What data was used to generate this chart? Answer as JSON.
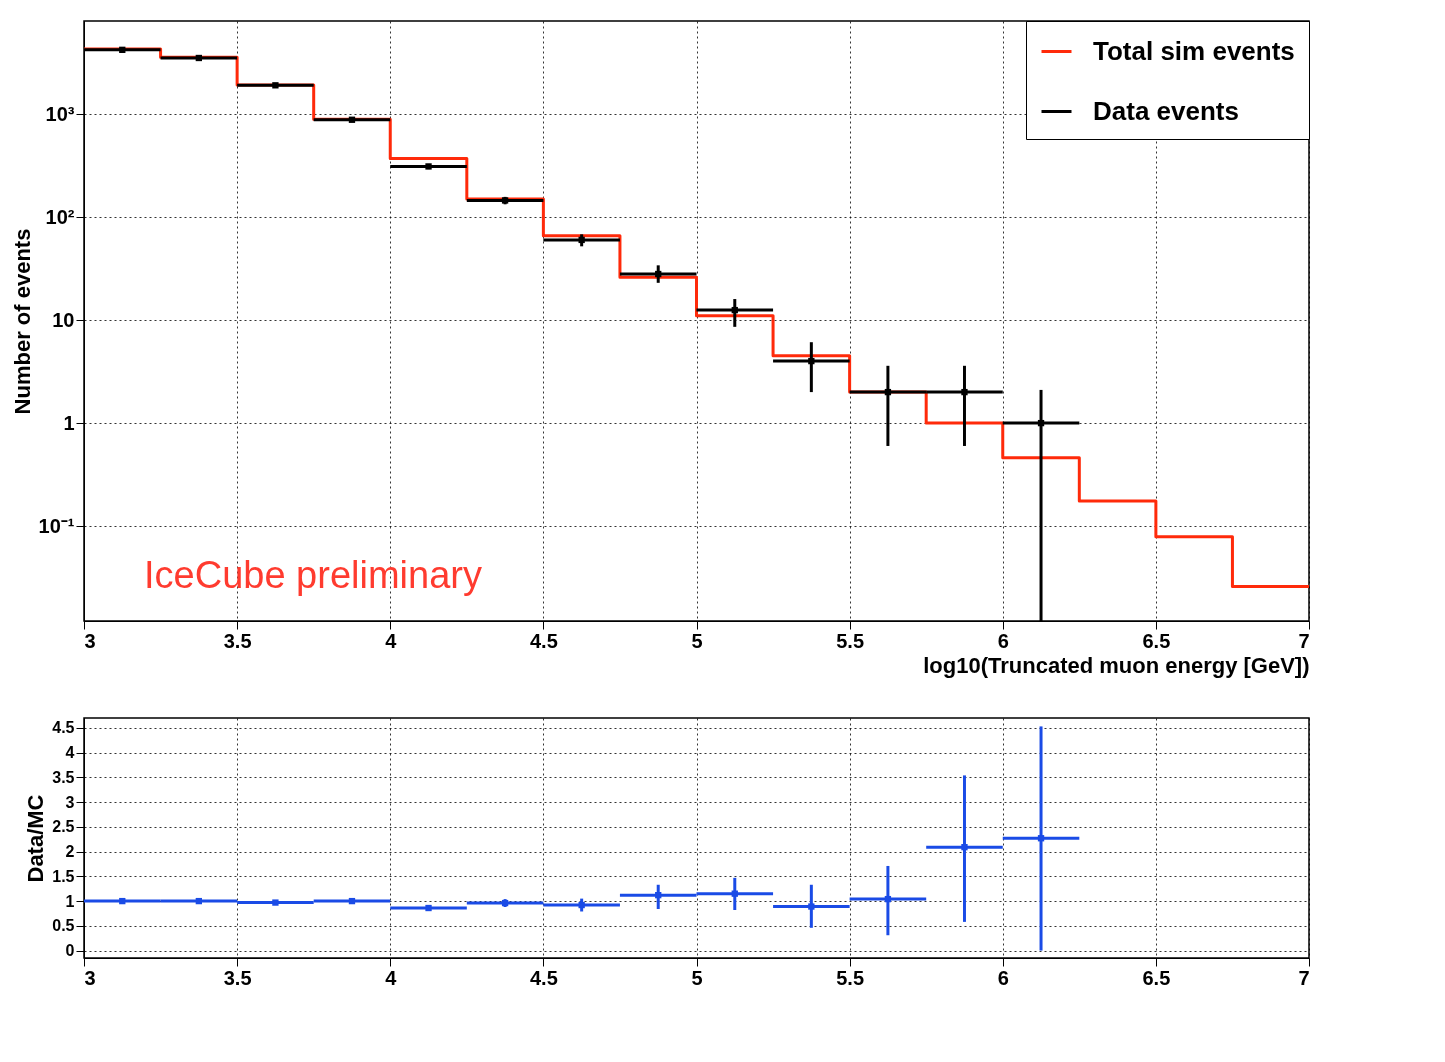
{
  "chart_data": [
    {
      "type": "histogram",
      "xlabel": "log10(Truncated muon energy [GeV])",
      "ylabel": "Number of events",
      "bins": [
        3,
        3.25,
        3.5,
        3.75,
        4,
        4.25,
        4.5,
        4.75,
        5,
        5.25,
        5.5,
        5.75,
        6,
        6.25,
        6.5,
        6.75,
        7
      ],
      "series": [
        {
          "name": "Total sim events",
          "color": "#ff2a0a",
          "values": [
            4270,
            3550,
            1910,
            890,
            370,
            150,
            66,
            26,
            11,
            4.5,
            2.0,
            1.0,
            0.46,
            0.175,
            0.079,
            0.026
          ]
        },
        {
          "name": "Data events",
          "type": "scatter",
          "color": "#000000",
          "x": [
            3.125,
            3.375,
            3.625,
            3.875,
            4.125,
            4.375,
            4.625,
            4.875,
            5.125,
            5.375,
            5.625,
            5.875,
            6.125
          ],
          "values": [
            4200,
            3500,
            1900,
            880,
            310,
            145,
            60,
            28,
            12.5,
            4.0,
            2.0,
            2.0,
            1.0
          ],
          "xerrors": [
            0.125,
            0.125,
            0.125,
            0.125,
            0.125,
            0.125,
            0.125,
            0.125,
            0.125,
            0.125,
            0.125,
            0.125,
            0.125
          ],
          "errors": [
            null,
            null,
            null,
            null,
            18,
            12,
            8,
            [
              23,
              34
            ],
            [
              8.6,
              16
            ],
            [
              2.0,
              6.1
            ],
            [
              0.6,
              3.6
            ],
            [
              0.6,
              3.6
            ],
            [
              0.012,
              2.1
            ]
          ]
        }
      ],
      "xlim": [
        3,
        7
      ],
      "xticks": [
        3,
        3.5,
        4,
        4.5,
        5,
        5.5,
        6,
        6.5,
        7
      ],
      "ylim": [
        0.012,
        8000
      ],
      "yticks": [
        {
          "value": 0.1,
          "label": "10⁻¹"
        },
        1,
        10,
        {
          "value": 100,
          "label": "10²"
        },
        {
          "value": 1000,
          "label": "10³"
        }
      ],
      "log": true,
      "grid": true,
      "legend": "top right",
      "marker": "square",
      "annotations": [
        "IceCube preliminary"
      ]
    },
    {
      "type": "scatter",
      "ylabel": "Data/MC",
      "x": [
        3.125,
        3.375,
        3.625,
        3.875,
        4.125,
        4.375,
        4.625,
        4.875,
        5.125,
        5.375,
        5.625,
        5.875,
        6.125
      ],
      "series": [
        {
          "color": "#1a4be6",
          "values": [
            1.0,
            1.0,
            0.97,
            1.0,
            0.86,
            0.96,
            0.92,
            1.12,
            1.15,
            0.89,
            1.04,
            2.09,
            2.27
          ],
          "xerrors": [
            0.125,
            0.125,
            0.125,
            0.125,
            0.125,
            0.125,
            0.125,
            0.125,
            0.125,
            0.125,
            0.125,
            0.125,
            0.125
          ],
          "errors": [
            0.03,
            0.03,
            0.03,
            0.04,
            0.06,
            0.08,
            [
              0.79,
              1.05
            ],
            [
              0.84,
              1.33
            ],
            [
              0.82,
              1.47
            ],
            [
              0.46,
              1.33
            ],
            [
              0.31,
              1.71
            ],
            [
              0.58,
              3.54
            ],
            [
              0,
              4.53
            ]
          ]
        }
      ],
      "xlim": [
        3,
        7
      ],
      "xticks": [
        3,
        3.5,
        4,
        4.5,
        5,
        5.5,
        6,
        6.5,
        7
      ],
      "ylim": [
        -0.15,
        4.7
      ],
      "yticks": [
        0,
        0.5,
        1,
        1.5,
        2,
        2.5,
        3,
        3.5,
        4,
        4.5
      ],
      "grid": true,
      "marker": "square"
    }
  ]
}
